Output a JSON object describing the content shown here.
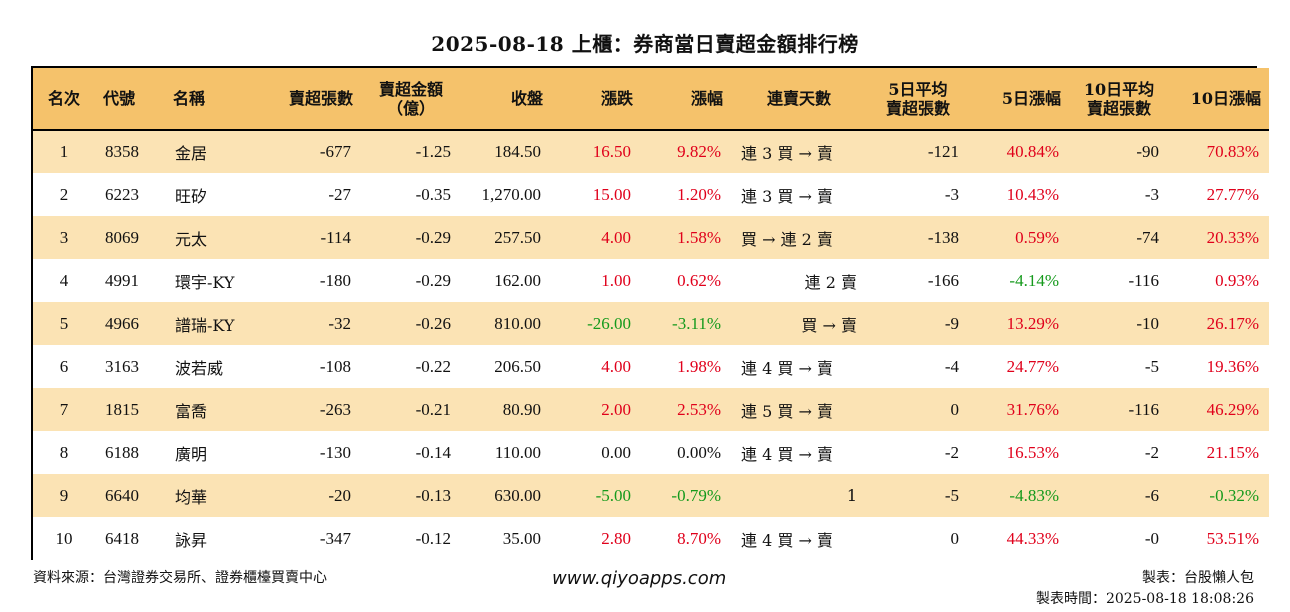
{
  "title": "2025-08-18 上櫃：券商當日賣超金額排行榜",
  "headers": {
    "rank": "名次",
    "code": "代號",
    "name": "名稱",
    "sell_shares": "賣超張數",
    "sell_amount_1": "賣超金額",
    "sell_amount_2": "（億）",
    "close": "收盤",
    "change": "漲跌",
    "change_pct": "漲幅",
    "streak": "連賣天數",
    "avg5_1": "5日平均",
    "avg5_2": "賣超張數",
    "pct5": "5日漲幅",
    "avg10_1": "10日平均",
    "avg10_2": "賣超張數",
    "pct10": "10日漲幅"
  },
  "rows": [
    {
      "rank": "1",
      "code": "8358",
      "name": "金居",
      "sell_shares": "-677",
      "sell_amount": "-1.25",
      "close": "184.50",
      "change": "16.50",
      "change_dir": "up",
      "change_pct": "9.82%",
      "change_pct_dir": "up",
      "streak": "連 3 買 → 賣",
      "streak_align": "left",
      "avg5": "-121",
      "pct5": "40.84%",
      "pct5_dir": "up",
      "avg10": "-90",
      "pct10": "70.83%",
      "pct10_dir": "up"
    },
    {
      "rank": "2",
      "code": "6223",
      "name": "旺矽",
      "sell_shares": "-27",
      "sell_amount": "-0.35",
      "close": "1,270.00",
      "change": "15.00",
      "change_dir": "up",
      "change_pct": "1.20%",
      "change_pct_dir": "up",
      "streak": "連 3 買 → 賣",
      "streak_align": "left",
      "avg5": "-3",
      "pct5": "10.43%",
      "pct5_dir": "up",
      "avg10": "-3",
      "pct10": "27.77%",
      "pct10_dir": "up"
    },
    {
      "rank": "3",
      "code": "8069",
      "name": "元太",
      "sell_shares": "-114",
      "sell_amount": "-0.29",
      "close": "257.50",
      "change": "4.00",
      "change_dir": "up",
      "change_pct": "1.58%",
      "change_pct_dir": "up",
      "streak": "買 → 連 2 賣",
      "streak_align": "left",
      "avg5": "-138",
      "pct5": "0.59%",
      "pct5_dir": "up",
      "avg10": "-74",
      "pct10": "20.33%",
      "pct10_dir": "up"
    },
    {
      "rank": "4",
      "code": "4991",
      "name": "環宇-KY",
      "sell_shares": "-180",
      "sell_amount": "-0.29",
      "close": "162.00",
      "change": "1.00",
      "change_dir": "up",
      "change_pct": "0.62%",
      "change_pct_dir": "up",
      "streak": "連 2 賣",
      "streak_align": "right",
      "avg5": "-166",
      "pct5": "-4.14%",
      "pct5_dir": "dn",
      "avg10": "-116",
      "pct10": "0.93%",
      "pct10_dir": "up"
    },
    {
      "rank": "5",
      "code": "4966",
      "name": "譜瑞-KY",
      "sell_shares": "-32",
      "sell_amount": "-0.26",
      "close": "810.00",
      "change": "-26.00",
      "change_dir": "dn",
      "change_pct": "-3.11%",
      "change_pct_dir": "dn",
      "streak": "買 → 賣",
      "streak_align": "right",
      "avg5": "-9",
      "pct5": "13.29%",
      "pct5_dir": "up",
      "avg10": "-10",
      "pct10": "26.17%",
      "pct10_dir": "up"
    },
    {
      "rank": "6",
      "code": "3163",
      "name": "波若威",
      "sell_shares": "-108",
      "sell_amount": "-0.22",
      "close": "206.50",
      "change": "4.00",
      "change_dir": "up",
      "change_pct": "1.98%",
      "change_pct_dir": "up",
      "streak": "連 4 買 → 賣",
      "streak_align": "left",
      "avg5": "-4",
      "pct5": "24.77%",
      "pct5_dir": "up",
      "avg10": "-5",
      "pct10": "19.36%",
      "pct10_dir": "up"
    },
    {
      "rank": "7",
      "code": "1815",
      "name": "富喬",
      "sell_shares": "-263",
      "sell_amount": "-0.21",
      "close": "80.90",
      "change": "2.00",
      "change_dir": "up",
      "change_pct": "2.53%",
      "change_pct_dir": "up",
      "streak": "連 5 買 → 賣",
      "streak_align": "left",
      "avg5": "0",
      "pct5": "31.76%",
      "pct5_dir": "up",
      "avg10": "-116",
      "pct10": "46.29%",
      "pct10_dir": "up"
    },
    {
      "rank": "8",
      "code": "6188",
      "name": "廣明",
      "sell_shares": "-130",
      "sell_amount": "-0.14",
      "close": "110.00",
      "change": "0.00",
      "change_dir": "nt",
      "change_pct": "0.00%",
      "change_pct_dir": "nt",
      "streak": "連 4 買 → 賣",
      "streak_align": "left",
      "avg5": "-2",
      "pct5": "16.53%",
      "pct5_dir": "up",
      "avg10": "-2",
      "pct10": "21.15%",
      "pct10_dir": "up"
    },
    {
      "rank": "9",
      "code": "6640",
      "name": "均華",
      "sell_shares": "-20",
      "sell_amount": "-0.13",
      "close": "630.00",
      "change": "-5.00",
      "change_dir": "dn",
      "change_pct": "-0.79%",
      "change_pct_dir": "dn",
      "streak": "1",
      "streak_align": "right",
      "avg5": "-5",
      "pct5": "-4.83%",
      "pct5_dir": "dn",
      "avg10": "-6",
      "pct10": "-0.32%",
      "pct10_dir": "dn"
    },
    {
      "rank": "10",
      "code": "6418",
      "name": "詠昇",
      "sell_shares": "-347",
      "sell_amount": "-0.12",
      "close": "35.00",
      "change": "2.80",
      "change_dir": "up",
      "change_pct": "8.70%",
      "change_pct_dir": "up",
      "streak": "連 4 買 → 賣",
      "streak_align": "left",
      "avg5": "0",
      "pct5": "44.33%",
      "pct5_dir": "up",
      "avg10": "-0",
      "pct10": "53.51%",
      "pct10_dir": "up"
    }
  ],
  "footer": {
    "source": "資料來源：台灣證券交易所、證券櫃檯買賣中心",
    "website": "www.qiyoapps.com",
    "maker": "製表：台股懶人包",
    "made_time": "製表時間：2025-08-18 18:08:26"
  },
  "colors": {
    "header_bg": "#f5c26b",
    "row_alt_bg": "#fbe3b4",
    "up": "#e0001b",
    "down": "#159a1c"
  }
}
